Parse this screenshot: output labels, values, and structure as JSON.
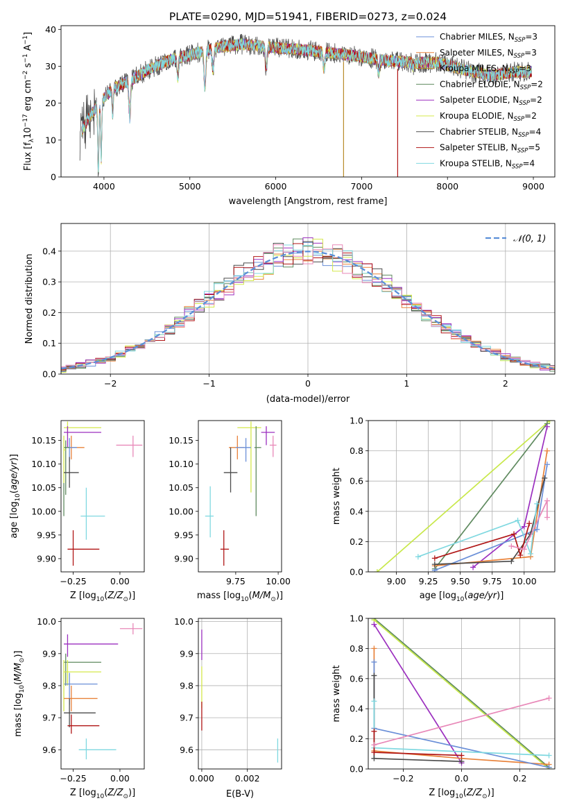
{
  "figure": {
    "suptitle": "PLATE=0290, MJD=51941, FIBERID=0273, z=0.024"
  },
  "colors": {
    "Chabrier MILES": "#6a8fd8",
    "Salpeter MILES": "#e8823a",
    "Kroupa MILES": "#b88a2a",
    "Chabrier ELODIE": "#5f8a5f",
    "Salpeter ELODIE": "#9b2fbf",
    "Kroupa ELODIE": "#d4e84a",
    "Chabrier STELIB": "#4a4a4a",
    "Salpeter STELIB": "#b01515",
    "Kroupa STELIB": "#7fd8e0",
    "Kroupa ELODIE mass-weight": "#c8e84a",
    "extra pink": "#e888b8",
    "normal curve": "#5b8fd8"
  },
  "chart_data": [
    {
      "id": "spectrum",
      "type": "line",
      "xlabel": "wavelength [Angstrom, rest frame]",
      "ylabel": "Flux [f_λ 10^-17 erg cm^-2 s^-1 A^-1]",
      "ylabel_parts": [
        "Flux [f",
        "λ",
        "10",
        "−17",
        " erg cm",
        "−2",
        " s",
        "−1",
        " A",
        "−1",
        "]"
      ],
      "xlim": [
        3500,
        9250
      ],
      "ylim": [
        0,
        41
      ],
      "xticks": [
        4000,
        5000,
        6000,
        7000,
        8000,
        9000
      ],
      "yticks": [
        0,
        10,
        20,
        30,
        40
      ],
      "grid": false,
      "legend_position": "top-right",
      "series": [
        {
          "name": "Chabrier MILES, N_SSP=3",
          "label": "Chabrier MILES, N",
          "sub": "SSP",
          "tail": "=3",
          "color": "#6a8fd8"
        },
        {
          "name": "Salpeter MILES, N_SSP=3",
          "label": "Salpeter MILES, N",
          "sub": "SSP",
          "tail": "=3",
          "color": "#e8823a"
        },
        {
          "name": "Kroupa MILES, N_SSP=3",
          "label": "Kroupa MILES, N",
          "sub": "SSP",
          "tail": "=3",
          "color": "#b88a2a"
        },
        {
          "name": "Chabrier ELODIE, N_SSP=2",
          "label": "Chabrier ELODIE, N",
          "sub": "SSP",
          "tail": "=2",
          "color": "#5f8a5f"
        },
        {
          "name": "Salpeter ELODIE, N_SSP=2",
          "label": "Salpeter ELODIE, N",
          "sub": "SSP",
          "tail": "=2",
          "color": "#9b2fbf"
        },
        {
          "name": "Kroupa ELODIE, N_SSP=2",
          "label": "Kroupa ELODIE, N",
          "sub": "SSP",
          "tail": "=2",
          "color": "#d4e84a"
        },
        {
          "name": "Chabrier STELIB, N_SSP=4",
          "label": "Chabrier STELIB, N",
          "sub": "SSP",
          "tail": "=4",
          "color": "#4a4a4a"
        },
        {
          "name": "Salpeter STELIB, N_SSP=5",
          "label": "Salpeter STELIB, N",
          "sub": "SSP",
          "tail": "=5",
          "color": "#b01515"
        },
        {
          "name": "Kroupa STELIB, N_SSP=4",
          "label": "Kroupa STELIB, N",
          "sub": "SSP",
          "tail": "=4",
          "color": "#7fd8e0"
        }
      ],
      "continuum_anchors": {
        "x": [
          3730,
          3850,
          3950,
          4100,
          4300,
          4500,
          4800,
          5000,
          5300,
          5600,
          6000,
          6300,
          6700,
          7000,
          7300,
          7600,
          7900,
          8200,
          8500,
          8800,
          9000
        ],
        "y": [
          12,
          17,
          20,
          24,
          26,
          29,
          32,
          33,
          35,
          36,
          35,
          34.5,
          33.5,
          32.5,
          31.5,
          31,
          31,
          29,
          27.5,
          28.5,
          28.5
        ]
      },
      "absorption_dips": [
        {
          "x": 3934,
          "y": 2
        },
        {
          "x": 3968,
          "y": 5
        },
        {
          "x": 4101,
          "y": 17
        },
        {
          "x": 4300,
          "y": 16
        },
        {
          "x": 4861,
          "y": 27
        },
        {
          "x": 5175,
          "y": 24
        },
        {
          "x": 5270,
          "y": 29
        },
        {
          "x": 5890,
          "y": 29
        },
        {
          "x": 6563,
          "y": 29
        },
        {
          "x": 7200,
          "y": 28
        },
        {
          "x": 7600,
          "y": 30
        }
      ],
      "dropouts": [
        {
          "x": 6790,
          "color": "#b88a2a"
        },
        {
          "x": 7420,
          "color": "#b01515"
        }
      ]
    },
    {
      "id": "residuals",
      "type": "histogram",
      "xlabel": "(data-model)/error",
      "ylabel": "Normed distribution",
      "xlim": [
        -2.5,
        2.5
      ],
      "ylim": [
        0,
        0.49
      ],
      "xticks": [
        -2,
        -1,
        0,
        1,
        2
      ],
      "xtick_labels": [
        "−2",
        "−1",
        "0",
        "1",
        "2"
      ],
      "yticks": [
        0.0,
        0.1,
        0.2,
        0.3,
        0.4
      ],
      "ytick_labels": [
        "0.0",
        "0.1",
        "0.2",
        "0.3",
        "0.4"
      ],
      "grid": true,
      "bin_width": 0.1,
      "overlay_label": "𝒩(0, 1)",
      "legend_position": "top-right",
      "series_colors": [
        "#6a8fd8",
        "#e8823a",
        "#5f8a5f",
        "#9b2fbf",
        "#d4e84a",
        "#4a4a4a",
        "#b01515",
        "#7fd8e0",
        "#e888b8"
      ]
    },
    {
      "id": "age-vs-Z",
      "type": "errorbar",
      "xlabel": "Z [log10(Z/Z⊙)]",
      "ylabel": "age [log10(age/yr)]",
      "xlim": [
        -0.315,
        0.13
      ],
      "ylim": [
        9.872,
        10.192
      ],
      "xticks": [
        -0.25,
        0.0
      ],
      "xtick_labels": [
        "−0.25",
        "0.00"
      ],
      "yticks": [
        9.9,
        9.95,
        10.0,
        10.05,
        10.1,
        10.15
      ],
      "ytick_labels": [
        "9.90",
        "9.95",
        "10.00",
        "10.05",
        "10.10",
        "10.15"
      ],
      "grid": false,
      "points": [
        {
          "x": -0.28,
          "xlo": -0.3,
          "xhi": -0.1,
          "y": 10.177,
          "ylo": 10.16,
          "yhi": 10.19,
          "color": "#d4e84a"
        },
        {
          "x": -0.28,
          "xlo": -0.3,
          "xhi": -0.1,
          "y": 10.167,
          "ylo": 10.135,
          "yhi": 10.18,
          "color": "#9b2fbf"
        },
        {
          "x": 0.07,
          "xlo": -0.02,
          "xhi": 0.12,
          "y": 10.14,
          "ylo": 10.115,
          "yhi": 10.16,
          "color": "#e888b8"
        },
        {
          "x": -0.26,
          "xlo": -0.3,
          "xhi": -0.19,
          "y": 10.135,
          "ylo": 10.11,
          "yhi": 10.16,
          "color": "#e8823a"
        },
        {
          "x": -0.27,
          "xlo": -0.3,
          "xhi": -0.23,
          "y": 10.135,
          "ylo": 10.105,
          "yhi": 10.155,
          "color": "#6a8fd8"
        },
        {
          "x": -0.29,
          "xlo": -0.3,
          "xhi": -0.27,
          "y": 10.135,
          "ylo": 10.035,
          "yhi": 10.15,
          "color": "#5f8a5f"
        },
        {
          "x": -0.3,
          "xlo": -0.3,
          "xhi": -0.29,
          "y": 10.13,
          "ylo": 10.06,
          "yhi": 10.16,
          "color": "#d4e84a"
        },
        {
          "x": -0.27,
          "xlo": -0.3,
          "xhi": -0.22,
          "y": 10.082,
          "ylo": 10.05,
          "yhi": 10.115,
          "color": "#4a4a4a"
        },
        {
          "x": -0.3,
          "xlo": -0.3,
          "xhi": -0.3,
          "y": 10.03,
          "ylo": 9.99,
          "yhi": 10.06,
          "color": "#5f8a5f"
        },
        {
          "x": -0.18,
          "xlo": -0.21,
          "xhi": -0.08,
          "y": 9.99,
          "ylo": 9.94,
          "yhi": 10.05,
          "color": "#7fd8e0"
        },
        {
          "x": -0.25,
          "xlo": -0.28,
          "xhi": -0.11,
          "y": 9.92,
          "ylo": 9.885,
          "yhi": 9.96,
          "color": "#b01515"
        }
      ]
    },
    {
      "id": "age-vs-mass",
      "type": "errorbar",
      "xlabel": "mass [log10(M/M⊙)]",
      "ylabel": "",
      "xlim": [
        9.53,
        10.02
      ],
      "ylim": [
        9.872,
        10.192
      ],
      "xticks": [
        9.75,
        10.0
      ],
      "xtick_labels": [
        "9.75",
        "10.00"
      ],
      "yticks": [
        9.9,
        9.95,
        10.0,
        10.05,
        10.1,
        10.15
      ],
      "ytick_labels": [
        "9.90",
        "9.95",
        "10.00",
        "10.05",
        "10.10",
        "10.15"
      ],
      "grid": false,
      "points": [
        {
          "x": 9.84,
          "xlo": 9.76,
          "xhi": 9.9,
          "y": 10.177,
          "ylo": 10.04,
          "yhi": 10.19,
          "color": "#d4e84a"
        },
        {
          "x": 9.93,
          "xlo": 9.9,
          "xhi": 9.98,
          "y": 10.167,
          "ylo": 10.14,
          "yhi": 10.18,
          "color": "#9b2fbf"
        },
        {
          "x": 9.97,
          "xlo": 9.95,
          "xhi": 9.99,
          "y": 10.14,
          "ylo": 10.115,
          "yhi": 10.16,
          "color": "#e888b8"
        },
        {
          "x": 9.76,
          "xlo": 9.71,
          "xhi": 9.8,
          "y": 10.135,
          "ylo": 10.11,
          "yhi": 10.16,
          "color": "#e8823a"
        },
        {
          "x": 9.81,
          "xlo": 9.75,
          "xhi": 9.84,
          "y": 10.135,
          "ylo": 10.105,
          "yhi": 10.155,
          "color": "#6a8fd8"
        },
        {
          "x": 9.87,
          "xlo": 9.86,
          "xhi": 9.9,
          "y": 10.135,
          "ylo": 9.99,
          "yhi": 10.18,
          "color": "#5f8a5f"
        },
        {
          "x": 9.72,
          "xlo": 9.68,
          "xhi": 9.76,
          "y": 10.082,
          "ylo": 10.04,
          "yhi": 10.135,
          "color": "#4a4a4a"
        },
        {
          "x": 9.6,
          "xlo": 9.57,
          "xhi": 9.62,
          "y": 9.99,
          "ylo": 9.945,
          "yhi": 10.053,
          "color": "#7fd8e0"
        },
        {
          "x": 9.68,
          "xlo": 9.66,
          "xhi": 9.71,
          "y": 9.92,
          "ylo": 9.885,
          "yhi": 9.96,
          "color": "#b01515"
        }
      ]
    },
    {
      "id": "massweight-vs-age",
      "type": "line",
      "xlabel": "age [log10(age/yr)]",
      "ylabel": "mass weight",
      "xlim": [
        8.78,
        10.24
      ],
      "ylim": [
        0.0,
        1.0
      ],
      "xticks": [
        9.0,
        9.25,
        9.5,
        9.75,
        10.0
      ],
      "xtick_labels": [
        "9.00",
        "9.25",
        "9.50",
        "9.75",
        "10.00"
      ],
      "yticks": [
        0.0,
        0.2,
        0.4,
        0.6,
        0.8,
        1.0
      ],
      "ytick_labels": [
        "0.0",
        "0.2",
        "0.4",
        "0.6",
        "0.8",
        "1.0"
      ],
      "grid": true,
      "series": [
        {
          "color": "#c8e84a",
          "x": [
            8.85,
            10.2
          ],
          "y": [
            0.0,
            1.0
          ]
        },
        {
          "color": "#5f8a5f",
          "x": [
            9.3,
            10.18
          ],
          "y": [
            0.02,
            0.98
          ]
        },
        {
          "color": "#9b2fbf",
          "x": [
            9.6,
            10.0,
            10.18
          ],
          "y": [
            0.03,
            0.3,
            0.96
          ]
        },
        {
          "color": "#e8823a",
          "x": [
            9.3,
            10.05,
            10.18
          ],
          "y": [
            0.04,
            0.1,
            0.8
          ]
        },
        {
          "color": "#6a8fd8",
          "x": [
            9.3,
            10.1,
            10.18
          ],
          "y": [
            0.01,
            0.28,
            0.71
          ]
        },
        {
          "color": "#4a4a4a",
          "x": [
            9.3,
            9.9,
            10.05,
            10.16
          ],
          "y": [
            0.05,
            0.07,
            0.25,
            0.62
          ]
        },
        {
          "color": "#7fd8e0",
          "x": [
            9.17,
            9.95,
            10.05,
            10.1
          ],
          "y": [
            0.1,
            0.34,
            0.12,
            0.45
          ]
        },
        {
          "color": "#b01515",
          "x": [
            9.3,
            9.92,
            9.97,
            10.04
          ],
          "y": [
            0.09,
            0.25,
            0.11,
            0.32
          ]
        },
        {
          "color": "#e888b8",
          "x": [
            9.9,
            10.0,
            10.18,
            10.18
          ],
          "y": [
            0.17,
            0.15,
            0.47,
            0.36
          ]
        }
      ]
    },
    {
      "id": "mass-vs-Z",
      "type": "errorbar",
      "xlabel": "Z [log10(Z/Z⊙)]",
      "ylabel": "mass [log10(M/M⊙)]",
      "xlim": [
        -0.315,
        0.13
      ],
      "ylim": [
        9.54,
        10.01
      ],
      "xticks": [
        -0.25,
        0.0
      ],
      "xtick_labels": [
        "−0.25",
        "0.00"
      ],
      "yticks": [
        9.6,
        9.7,
        9.8,
        9.9,
        10.0
      ],
      "ytick_labels": [
        "9.6",
        "9.7",
        "9.8",
        "9.9",
        "10.0"
      ],
      "grid": false,
      "points": [
        {
          "x": 0.07,
          "xlo": 0.0,
          "xhi": 0.12,
          "y": 9.978,
          "ylo": 9.96,
          "yhi": 9.995,
          "color": "#e888b8"
        },
        {
          "x": -0.28,
          "xlo": -0.3,
          "xhi": -0.01,
          "y": 9.93,
          "ylo": 9.89,
          "yhi": 9.96,
          "color": "#9b2fbf"
        },
        {
          "x": -0.29,
          "xlo": -0.3,
          "xhi": -0.1,
          "y": 9.873,
          "ylo": 9.8,
          "yhi": 9.9,
          "color": "#5f8a5f"
        },
        {
          "x": -0.28,
          "xlo": -0.3,
          "xhi": -0.1,
          "y": 9.843,
          "ylo": 9.8,
          "yhi": 9.88,
          "color": "#d4e84a"
        },
        {
          "x": -0.27,
          "xlo": -0.3,
          "xhi": -0.12,
          "y": 9.805,
          "ylo": 9.74,
          "yhi": 9.84,
          "color": "#6a8fd8"
        },
        {
          "x": -0.3,
          "xlo": -0.3,
          "xhi": -0.3,
          "y": 9.8,
          "ylo": 9.72,
          "yhi": 9.88,
          "color": "#d4e84a"
        },
        {
          "x": -0.26,
          "xlo": -0.3,
          "xhi": -0.12,
          "y": 9.76,
          "ylo": 9.72,
          "yhi": 9.8,
          "color": "#e8823a"
        },
        {
          "x": -0.27,
          "xlo": -0.3,
          "xhi": -0.13,
          "y": 9.715,
          "ylo": 9.67,
          "yhi": 9.76,
          "color": "#4a4a4a"
        },
        {
          "x": -0.26,
          "xlo": -0.28,
          "xhi": -0.11,
          "y": 9.675,
          "ylo": 9.65,
          "yhi": 9.71,
          "color": "#b01515"
        },
        {
          "x": -0.18,
          "xlo": -0.22,
          "xhi": -0.02,
          "y": 9.6,
          "ylo": 9.57,
          "yhi": 9.635,
          "color": "#7fd8e0"
        }
      ]
    },
    {
      "id": "mass-vs-ebv",
      "type": "errorbar",
      "xlabel": "E(B-V)",
      "ylabel": "",
      "xlim": [
        -0.00015,
        0.0035
      ],
      "ylim": [
        9.54,
        10.01
      ],
      "xticks": [
        0.0,
        0.002
      ],
      "xtick_labels": [
        "0.000",
        "0.002"
      ],
      "yticks": [
        9.6,
        9.7,
        9.8,
        9.9,
        10.0
      ],
      "ytick_labels": [
        "9.6",
        "9.7",
        "9.8",
        "9.9",
        "10.0"
      ],
      "grid": true,
      "points": [
        {
          "x": 0.0,
          "xlo": 0.0,
          "xhi": 0.0,
          "y": 9.93,
          "ylo": 9.88,
          "yhi": 9.975,
          "color": "#9b2fbf"
        },
        {
          "x": 0.0,
          "xlo": 0.0,
          "xhi": 0.0,
          "y": 9.8,
          "ylo": 9.73,
          "yhi": 9.86,
          "color": "#d4e84a"
        },
        {
          "x": 0.0,
          "xlo": 0.0,
          "xhi": 0.0,
          "y": 9.72,
          "ylo": 9.66,
          "yhi": 9.75,
          "color": "#b01515"
        },
        {
          "x": 0.00333,
          "xlo": 0.00333,
          "xhi": 0.00333,
          "y": 9.6,
          "ylo": 9.56,
          "yhi": 9.635,
          "color": "#7fd8e0"
        }
      ]
    },
    {
      "id": "massweight-vs-Z",
      "type": "line",
      "xlabel": "Z [log10(Z/Z⊙)]",
      "ylabel": "mass weight",
      "xlim": [
        -0.32,
        0.32
      ],
      "ylim": [
        0.0,
        1.0
      ],
      "xticks": [
        -0.2,
        0.0,
        0.2
      ],
      "xtick_labels": [
        "−0.2",
        "0.0",
        "0.2"
      ],
      "yticks": [
        0.0,
        0.2,
        0.4,
        0.6,
        0.8,
        1.0
      ],
      "ytick_labels": [
        "0.0",
        "0.2",
        "0.4",
        "0.6",
        "0.8",
        "1.0"
      ],
      "grid": true,
      "series": [
        {
          "color": "#5f8a5f",
          "x": [
            -0.3,
            0.3
          ],
          "y": [
            1.0,
            0.01
          ]
        },
        {
          "color": "#c8e84a",
          "x": [
            -0.3,
            0.3
          ],
          "y": [
            0.99,
            0.0
          ]
        },
        {
          "color": "#9b2fbf",
          "x": [
            -0.3,
            0.0
          ],
          "y": [
            0.96,
            0.04
          ]
        },
        {
          "color": "#e8823a",
          "x": [
            -0.3,
            -0.3,
            0.0,
            0.3
          ],
          "y": [
            0.8,
            0.12,
            0.07,
            0.03
          ]
        },
        {
          "color": "#6a8fd8",
          "x": [
            -0.3,
            -0.3,
            0.3
          ],
          "y": [
            0.71,
            0.27,
            0.01
          ]
        },
        {
          "color": "#4a4a4a",
          "x": [
            -0.3,
            -0.3,
            0.0
          ],
          "y": [
            0.62,
            0.07,
            0.05
          ]
        },
        {
          "color": "#7fd8e0",
          "x": [
            -0.3,
            -0.3,
            0.3
          ],
          "y": [
            0.45,
            0.14,
            0.09
          ]
        },
        {
          "color": "#b01515",
          "x": [
            -0.3,
            -0.3,
            0.0
          ],
          "y": [
            0.25,
            0.11,
            0.09
          ]
        },
        {
          "color": "#e888b8",
          "x": [
            -0.3,
            0.3
          ],
          "y": [
            0.16,
            0.47
          ]
        }
      ]
    }
  ]
}
